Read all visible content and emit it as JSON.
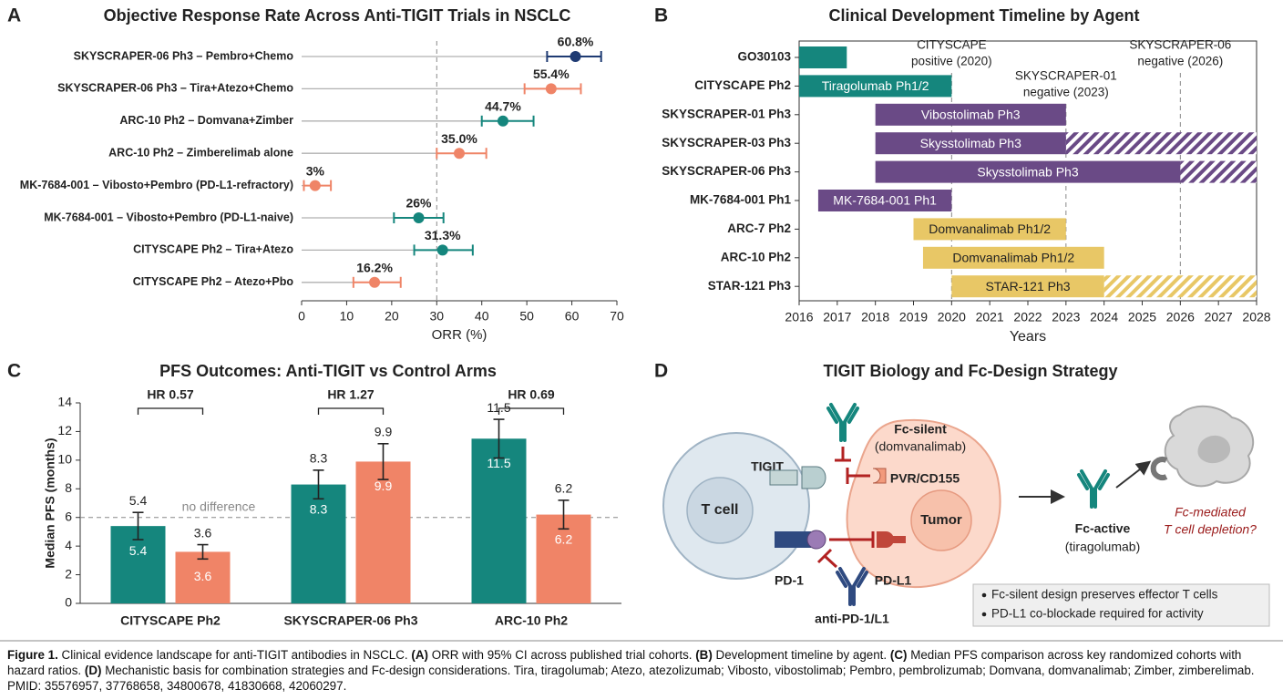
{
  "chart_data": [
    {
      "type": "forest",
      "panel": "A",
      "title": "Objective Response Rate Across Anti-TIGIT Trials in NSCLC",
      "categories": [
        "SKYSCRAPER-06 Ph3 – Pembro+Chemo",
        "SKYSCRAPER-06 Ph3 – Tira+Atezo+Chemo",
        "ARC-10 Ph2 – Domvana+Zimber",
        "ARC-10 Ph2 – Zimberelimab alone",
        "MK-7684-001 – Vibosto+Pembro (PD-L1-refractory)",
        "MK-7684-001 – Vibosto+Pembro (PD-L1-naive)",
        "CITYSCAPE Ph2 – Tira+Atezo",
        "CITYSCAPE Ph2 – Atezo+Pbo"
      ],
      "values": [
        60.8,
        55.4,
        44.7,
        35.0,
        3,
        26,
        31.3,
        16.2
      ],
      "value_labels": [
        "60.8%",
        "55.4%",
        "44.7%",
        "35.0%",
        "3%",
        "26%",
        "31.3%",
        "16.2%"
      ],
      "ci_low": [
        54.5,
        49.5,
        40,
        30,
        0.5,
        20.5,
        25,
        11.5
      ],
      "ci_high": [
        66.5,
        62,
        51.5,
        41,
        6.5,
        31.5,
        38,
        22
      ],
      "colors": [
        "#1f3b73",
        "#ef8467",
        "#15867d",
        "#ef8467",
        "#ef8467",
        "#15867d",
        "#15867d",
        "#ef8467"
      ],
      "xlim": [
        0,
        70
      ],
      "xticks": [
        0,
        10,
        20,
        30,
        40,
        50,
        60,
        70
      ],
      "xlabel": "ORR (%)",
      "reference_line": 30
    },
    {
      "type": "timeline",
      "panel": "B",
      "title": "Clinical Development Timeline by Agent",
      "categories": [
        "GO30103",
        "CITYSCAPE Ph2",
        "SKYSCRAPER-01 Ph3",
        "SKYSCRAPER-03 Ph3",
        "SKYSCRAPER-06 Ph3",
        "MK-7684-001 Ph1",
        "ARC-7 Ph2",
        "ARC-10 Ph2",
        "STAR-121 Ph3"
      ],
      "start": [
        2016,
        2016,
        2018,
        2018,
        2018,
        2016.5,
        2019,
        2019.25,
        2020
      ],
      "end": [
        2017.25,
        2020,
        2023,
        2023,
        2026,
        2020,
        2023,
        2024,
        2024
      ],
      "projected_end": [
        null,
        null,
        null,
        2028,
        2028,
        null,
        null,
        null,
        2028
      ],
      "bar_labels": [
        null,
        "Tiragolumab Ph1/2",
        "Vibostolimab Ph3",
        "Skysstolimab Ph3",
        "Skysstolimab Ph3",
        "MK-7684-001 Ph1",
        "Domvanalimab Ph1/2",
        "Domvanalimab Ph1/2",
        "STAR-121 Ph3"
      ],
      "colors": [
        "#15867d",
        "#15867d",
        "#6a4a86",
        "#6a4a86",
        "#6a4a86",
        "#6a4a86",
        "#e8c766",
        "#e8c766",
        "#e8c766"
      ],
      "bar_label_colors": [
        "#ffffff",
        "#ffffff",
        "#ffffff",
        "#ffffff",
        "#ffffff",
        "#ffffff",
        "#222222",
        "#222222",
        "#222222"
      ],
      "xlim": [
        2016,
        2028
      ],
      "xticks": [
        2016,
        2017,
        2018,
        2019,
        2020,
        2021,
        2022,
        2023,
        2024,
        2025,
        2026,
        2027,
        2028
      ],
      "xlabel": "Years",
      "events": [
        {
          "x": 2020,
          "label": [
            "CITYSCAPE",
            "positive (2020)"
          ]
        },
        {
          "x": 2023,
          "label": [
            "SKYSCRAPER-01",
            "negative (2023)"
          ]
        },
        {
          "x": 2026,
          "label": [
            "SKYSCRAPER-06",
            "negative (2026)"
          ]
        }
      ]
    },
    {
      "type": "grouped_bar",
      "panel": "C",
      "title": "PFS Outcomes: Anti-TIGIT vs Control Arms",
      "categories": [
        "CITYSCAPE Ph2",
        "SKYSCRAPER-06 Ph3",
        "ARC-10 Ph2"
      ],
      "series": [
        {
          "color": "#15867d",
          "values": [
            5.4,
            8.3,
            11.5
          ],
          "errors": [
            0.95,
            1.0,
            1.35
          ]
        },
        {
          "color": "#f08467",
          "values": [
            3.6,
            9.9,
            6.2
          ],
          "errors": [
            0.5,
            1.25,
            1.0
          ]
        }
      ],
      "ylim": [
        0,
        14
      ],
      "yticks": [
        0,
        2,
        4,
        6,
        8,
        10,
        12,
        14
      ],
      "ylabel": "Median PFS (months)",
      "annotations": [
        "HR 0.57",
        "HR 1.27",
        "HR 0.69"
      ],
      "reference_line": {
        "value": 6,
        "label": "no difference"
      }
    }
  ],
  "diagram": {
    "panel": "D",
    "title": "TIGIT Biology and Fc-Design Strategy",
    "labels": {
      "fc_silent": "Fc-silent",
      "fc_silent_agent": "(domvanalimab)",
      "tigit": "TIGIT",
      "t_cell": "T cell",
      "pvr": "PVR/CD155",
      "tumor": "Tumor",
      "pd1": "PD-1",
      "pdl1": "PD-L1",
      "anti_pd1": "anti-PD-1/L1",
      "fc_active": "Fc-active",
      "fc_active_agent": "(tiragolumab)",
      "depletion": [
        "Fc-mediated",
        "T cell depletion?"
      ]
    },
    "notes": [
      "Fc-silent design preserves effector T cells",
      "PD-L1 co-blockade required for activity"
    ]
  },
  "caption": {
    "figure_label": "Figure 1.",
    "text": "Clinical evidence landscape for anti-TIGIT antibodies in NSCLC.",
    "parts": [
      {
        "label": "(A)",
        "text": "ORR with 95% CI across published trial cohorts."
      },
      {
        "label": "(B)",
        "text": "Development timeline by agent."
      },
      {
        "label": "(C)",
        "text": "Median PFS comparison across key randomized cohorts with hazard ratios."
      },
      {
        "label": "(D)",
        "text": "Mechanistic basis for combination strategies and Fc-design considerations. Tira, tiragolumab; Atezo, atezolizumab; Vibosto, vibostolimab; Pembro, pembrolizumab; Domvana, domvanalimab; Zimber, zimberelimab. PMID: 35576957, 37768658, 34800678, 41830668, 42060297."
      }
    ]
  }
}
